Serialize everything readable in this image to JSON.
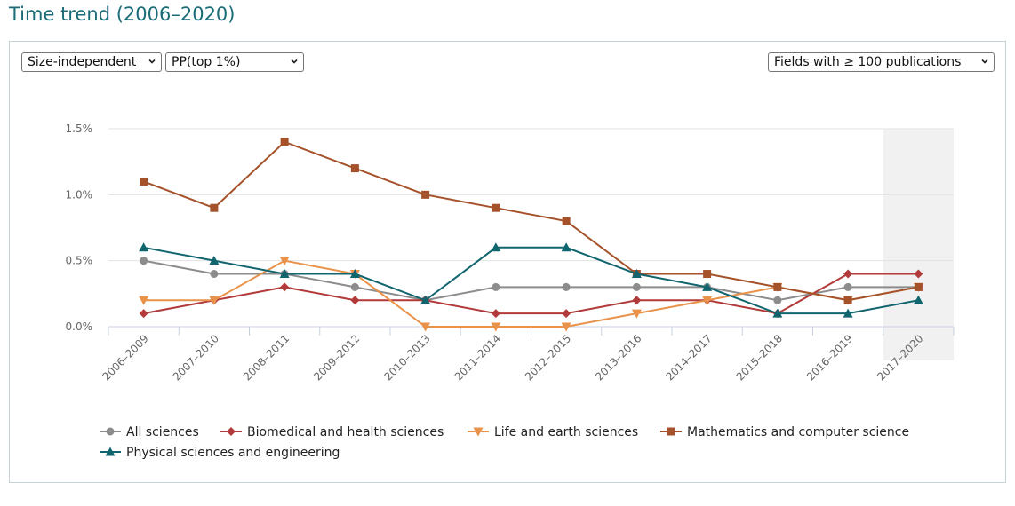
{
  "page": {
    "title": "Time trend (2006–2020)"
  },
  "controls": {
    "indicator_type": "Size-independent",
    "indicator": "PP(top 1%)",
    "field_filter": "Fields with ≥ 100 publications"
  },
  "chart_data": {
    "type": "line",
    "categories": [
      "2006–2009",
      "2007–2010",
      "2008–2011",
      "2009–2012",
      "2010–2013",
      "2011–2014",
      "2012–2015",
      "2013–2016",
      "2014–2017",
      "2015–2018",
      "2016–2019",
      "2017–2020"
    ],
    "ylim": [
      0,
      1.5
    ],
    "yticks": [
      "0.0%",
      "0.5%",
      "1.0%",
      "1.5%"
    ],
    "ytick_values": [
      0,
      0.5,
      1.0,
      1.5
    ],
    "highlighted_category": "2017–2020",
    "grid": true,
    "legend_position": "bottom",
    "series": [
      {
        "name": "All sciences",
        "color": "#8c8c8c",
        "marker": "circle",
        "values": [
          0.5,
          0.4,
          0.4,
          0.3,
          0.2,
          0.3,
          0.3,
          0.3,
          0.3,
          0.2,
          0.3,
          0.3
        ]
      },
      {
        "name": "Biomedical and health sciences",
        "color": "#b23a3a",
        "marker": "diamond",
        "values": [
          0.1,
          0.2,
          0.3,
          0.2,
          0.2,
          0.1,
          0.1,
          0.2,
          0.2,
          0.1,
          0.4,
          0.4
        ]
      },
      {
        "name": "Life and earth sciences",
        "color": "#e8924a",
        "marker": "triangle-down",
        "values": [
          0.2,
          0.2,
          0.5,
          0.4,
          0.0,
          0.0,
          0.0,
          0.1,
          0.2,
          0.3,
          0.2,
          0.3
        ]
      },
      {
        "name": "Mathematics and computer science",
        "color": "#a5522b",
        "marker": "square",
        "values": [
          1.1,
          0.9,
          1.4,
          1.2,
          1.0,
          0.9,
          0.8,
          0.4,
          0.4,
          0.3,
          0.2,
          0.3
        ]
      },
      {
        "name": "Physical sciences and engineering",
        "color": "#11656e",
        "marker": "triangle-up",
        "values": [
          0.6,
          0.5,
          0.4,
          0.4,
          0.2,
          0.6,
          0.6,
          0.4,
          0.3,
          0.1,
          0.1,
          0.2
        ]
      }
    ]
  }
}
